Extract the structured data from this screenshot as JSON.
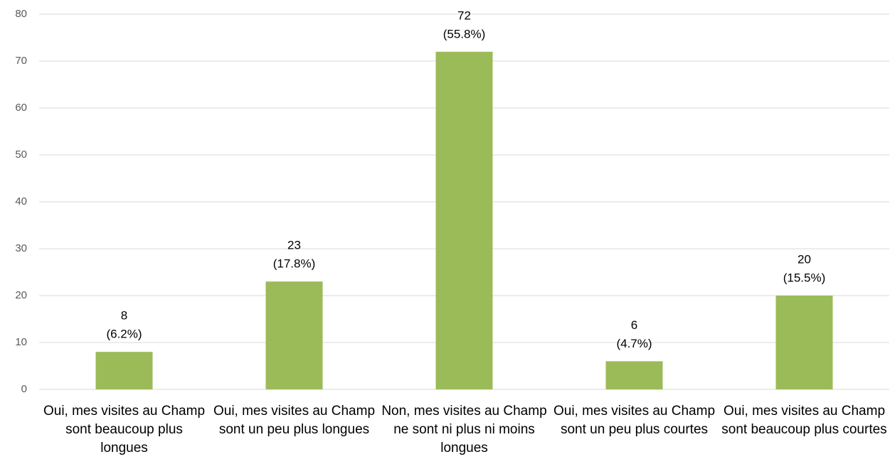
{
  "chart_data": {
    "type": "bar",
    "categories": [
      "Oui, mes visites au Champ sont beaucoup plus longues",
      "Oui, mes visites au Champ sont un peu plus longues",
      "Non, mes visites au Champ ne sont ni plus ni moins longues",
      "Oui, mes visites au Champ sont un peu plus courtes",
      "Oui, mes visites au Champ sont beaucoup plus courtes"
    ],
    "values": [
      8,
      23,
      72,
      6,
      20
    ],
    "shares": [
      6.2,
      17.8,
      55.8,
      4.7,
      15.5
    ],
    "share_labels": [
      "(6.2%)",
      "(17.8%)",
      "(55.8%)",
      "(4.7%)",
      "(15.5%)"
    ],
    "color": "#9bbb59",
    "ylim": [
      0,
      80
    ],
    "yticks": [
      0,
      10,
      20,
      30,
      40,
      50,
      60,
      70,
      80
    ],
    "grid": true
  }
}
